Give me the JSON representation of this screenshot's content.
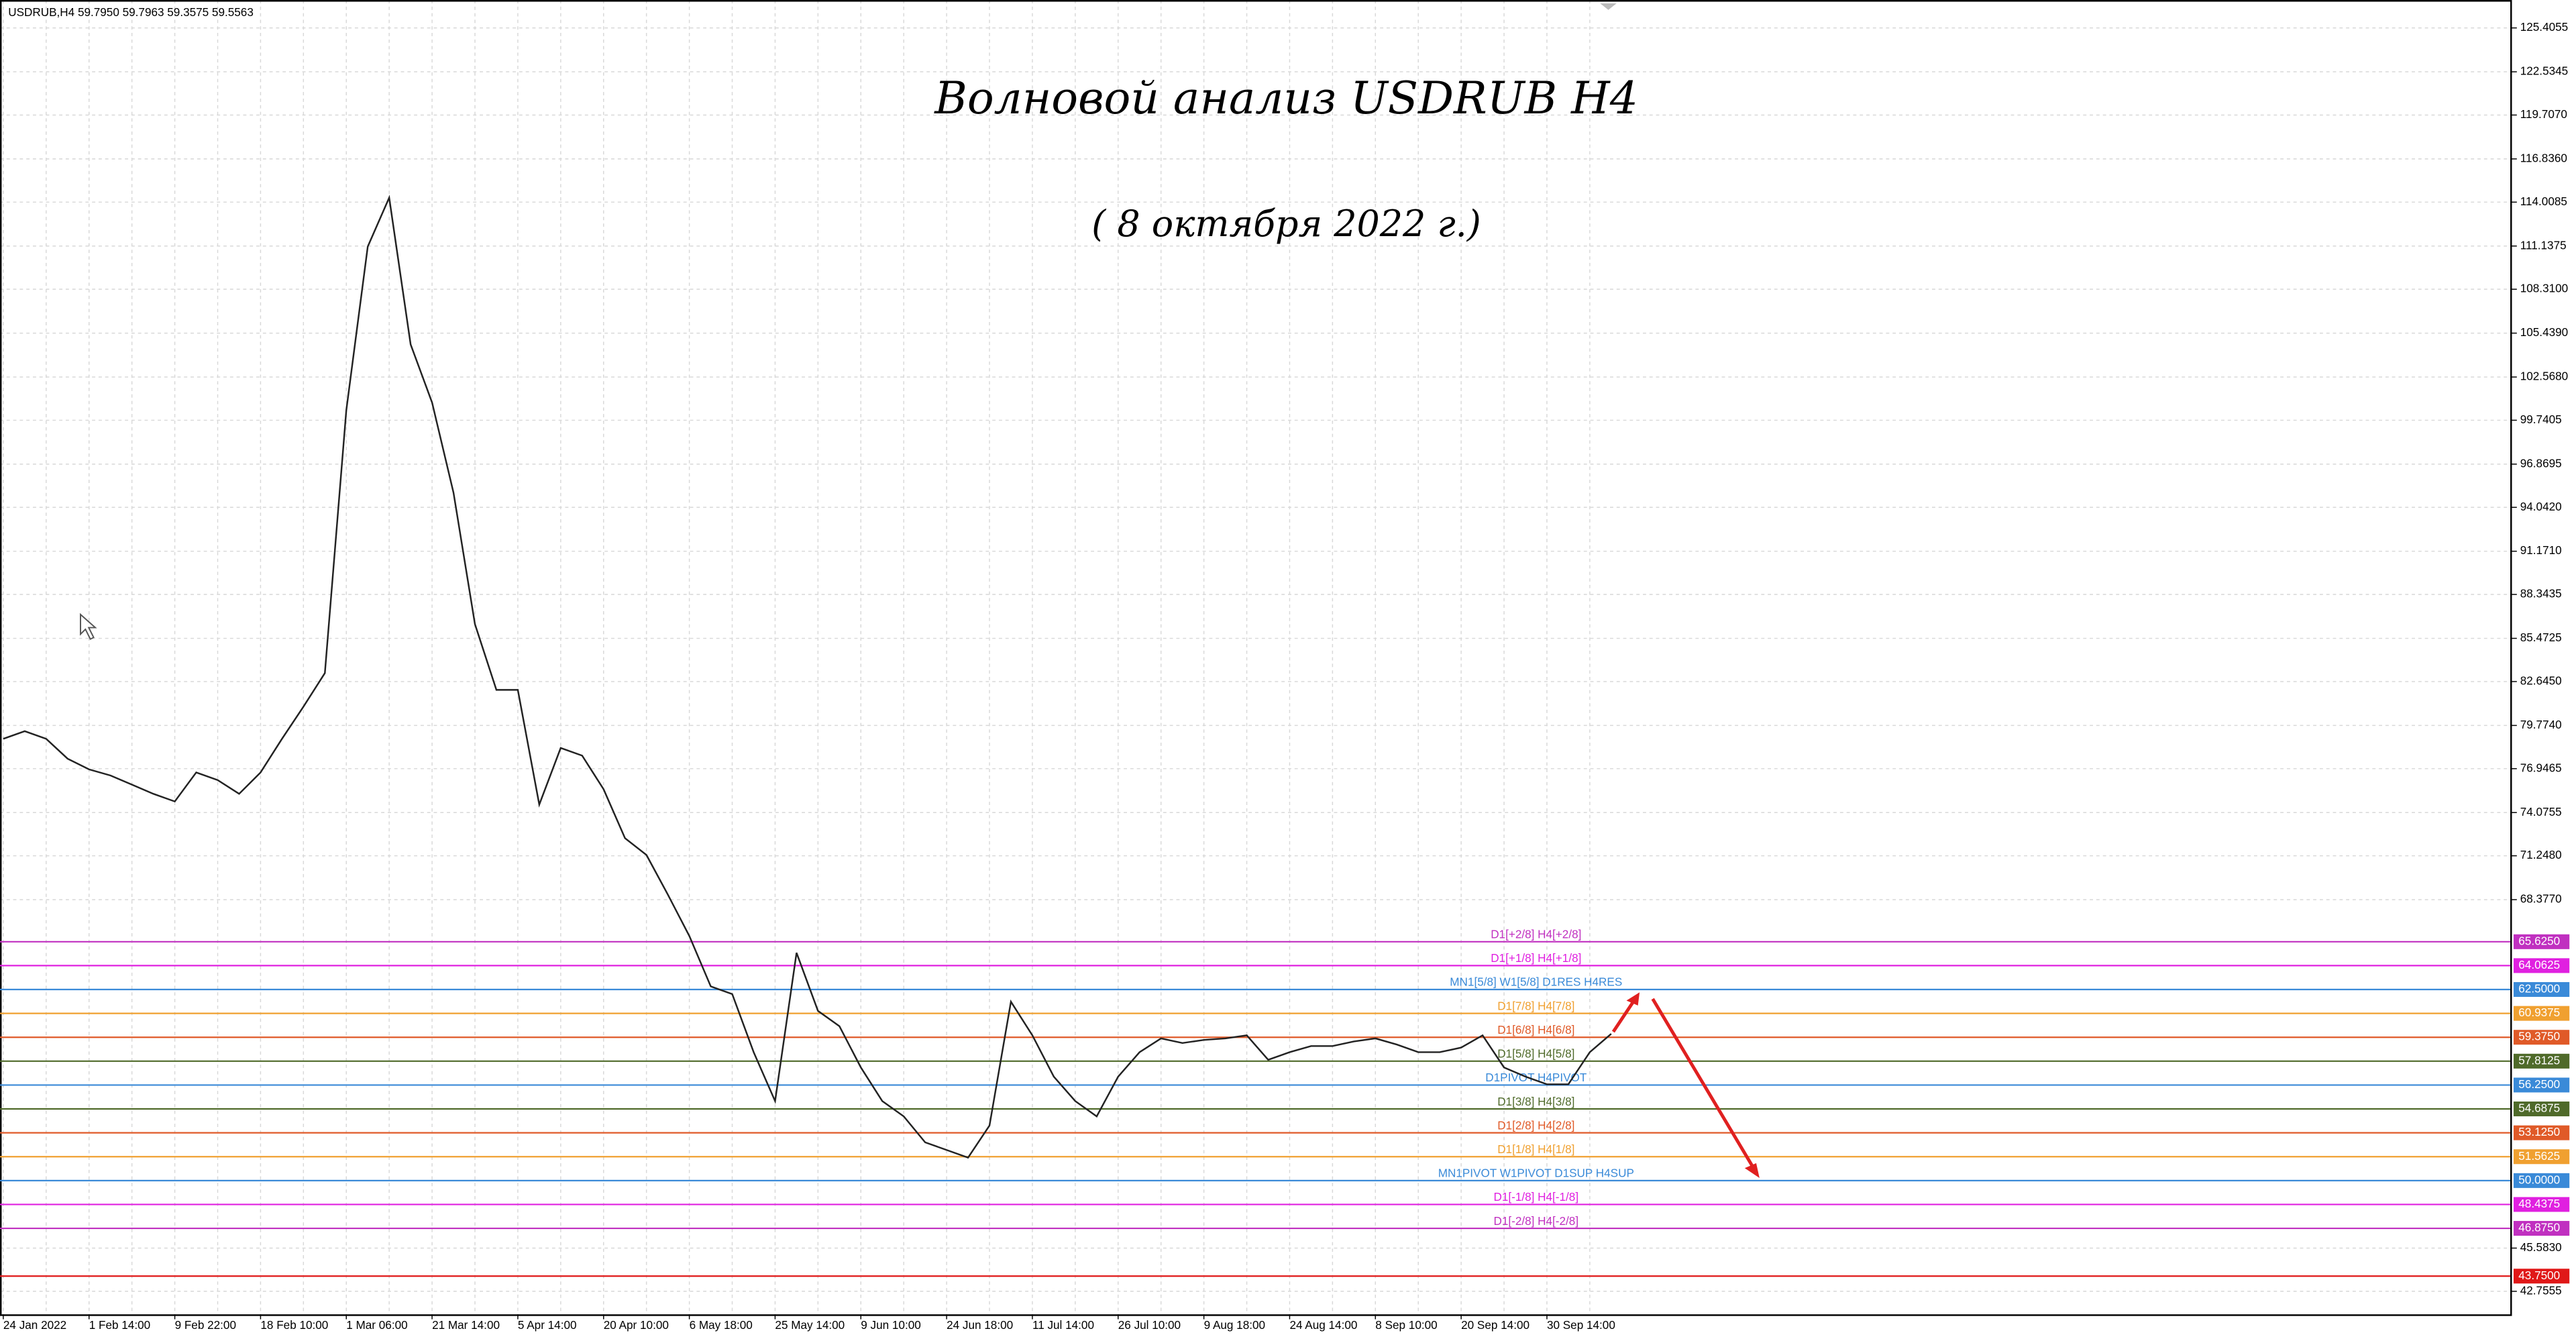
{
  "chart_data": {
    "type": "line",
    "header": "USDRUB,H4  59.7950 59.7963 59.3575 59.5563",
    "title": "Волновой анализ USDRUB H4",
    "subtitle": "( 8 октября 2022 г.)",
    "categories": [
      "24 Jan 2022",
      null,
      null,
      null,
      "1 Feb 14:00",
      null,
      null,
      null,
      "9 Feb 22:00",
      null,
      null,
      null,
      "18 Feb 10:00",
      null,
      null,
      null,
      "1 Mar 06:00",
      null,
      null,
      null,
      "21 Mar 14:00",
      null,
      null,
      null,
      "5 Apr 14:00",
      null,
      null,
      null,
      "20 Apr 10:00",
      null,
      null,
      null,
      "6 May 18:00",
      null,
      null,
      null,
      "25 May 14:00",
      null,
      null,
      null,
      "9 Jun 10:00",
      null,
      null,
      null,
      "24 Jun 18:00",
      null,
      null,
      null,
      "11 Jul 14:00",
      null,
      null,
      null,
      "26 Jul 10:00",
      null,
      null,
      null,
      "9 Aug 18:00",
      null,
      null,
      null,
      "24 Aug 14:00",
      null,
      null,
      null,
      "8 Sep 10:00",
      null,
      null,
      null,
      "20 Sep 14:00",
      null,
      null,
      null,
      "30 Sep 14:00",
      null,
      null,
      null
    ],
    "values": [
      78.9,
      79.4,
      78.9,
      77.6,
      76.9,
      76.5,
      75.9,
      75.3,
      74.8,
      76.7,
      76.2,
      75.3,
      76.7,
      78.9,
      81.0,
      83.2,
      100.4,
      111.1,
      114.3,
      104.7,
      100.9,
      95.0,
      86.4,
      82.1,
      82.1,
      74.6,
      78.3,
      77.8,
      75.6,
      72.4,
      71.3,
      68.7,
      66.0,
      62.7,
      62.2,
      58.4,
      55.2,
      64.9,
      61.1,
      60.1,
      57.4,
      55.2,
      54.2,
      52.5,
      52.0,
      51.5,
      53.6,
      61.7,
      59.5,
      56.8,
      55.2,
      54.2,
      56.8,
      58.4,
      59.3,
      59.0,
      59.2,
      59.3,
      59.5,
      57.9,
      58.4,
      58.8,
      58.8,
      59.1,
      59.3,
      58.9,
      58.4,
      58.4,
      58.7,
      59.5,
      57.4,
      56.8,
      56.3,
      56.3,
      58.4,
      59.6
    ],
    "color": "#222222",
    "ylim": [
      41.25,
      127.23
    ],
    "yticks": [
      125.4055,
      122.5345,
      {
        "value": 119.707,
        "label": "119.7070"
      },
      {
        "value": 116.836,
        "label": "116.8360"
      },
      114.0085,
      111.1375,
      {
        "value": 108.31,
        "label": "108.3100"
      },
      {
        "value": 105.439,
        "label": "105.4390"
      },
      {
        "value": 102.568,
        "label": "102.5680"
      },
      99.7405,
      96.8695,
      {
        "value": 94.042,
        "label": "94.0420"
      },
      {
        "value": 91.171,
        "label": "91.1710"
      },
      88.3435,
      85.4725,
      {
        "value": 82.645,
        "label": "82.6450"
      },
      {
        "value": 79.774,
        "label": "79.7740"
      },
      76.9465,
      74.0755,
      {
        "value": 71.248,
        "label": "71.2480"
      },
      {
        "value": 68.377,
        "label": "68.3770"
      },
      {
        "value": 45.583,
        "label": "45.5830"
      },
      42.7555
    ],
    "grid": true,
    "levels": [
      {
        "value": 65.625,
        "value_label": "65.6250",
        "text": "D1[+2/8] H4[+2/8]",
        "color": "#c030c0"
      },
      {
        "value": 64.0625,
        "value_label": "64.0625",
        "text": "D1[+1/8] H4[+1/8]",
        "color": "#e020e0"
      },
      {
        "value": 62.5,
        "value_label": "62.5000",
        "text": "MN1[5/8] W1[5/8] D1RES H4RES",
        "color": "#3a8ad8"
      },
      {
        "value": 60.9375,
        "value_label": "60.9375",
        "text": "D1[7/8] H4[7/8]",
        "color": "#f0a030"
      },
      {
        "value": 59.375,
        "value_label": "59.3750",
        "text": "D1[6/8] H4[6/8]",
        "color": "#e05a28"
      },
      {
        "value": 57.8125,
        "value_label": "57.8125",
        "text": "D1[5/8] H4[5/8]",
        "color": "#4f6a2a"
      },
      {
        "value": 56.25,
        "value_label": "56.2500",
        "text": "D1PIVOT H4PIVOT",
        "color": "#3a8ad8"
      },
      {
        "value": 54.6875,
        "value_label": "54.6875",
        "text": "D1[3/8] H4[3/8]",
        "color": "#4f6a2a"
      },
      {
        "value": 53.125,
        "value_label": "53.1250",
        "text": "D1[2/8] H4[2/8]",
        "color": "#e05a28"
      },
      {
        "value": 51.5625,
        "value_label": "51.5625",
        "text": "D1[1/8] H4[1/8]",
        "color": "#f0a030"
      },
      {
        "value": 50,
        "value_label": "50.0000",
        "text": "MN1PIVOT W1PIVOT D1SUP H4SUP",
        "color": "#3a8ad8"
      },
      {
        "value": 48.4375,
        "value_label": "48.4375",
        "text": "D1[-1/8] H4[-1/8]",
        "color": "#e020e0"
      },
      {
        "value": 46.875,
        "value_label": "46.8750",
        "text": "D1[-2/8] H4[-2/8]",
        "color": "#c030c0"
      },
      {
        "value": 43.75,
        "value_label": "43.7500",
        "color": "#e01818"
      }
    ]
  }
}
